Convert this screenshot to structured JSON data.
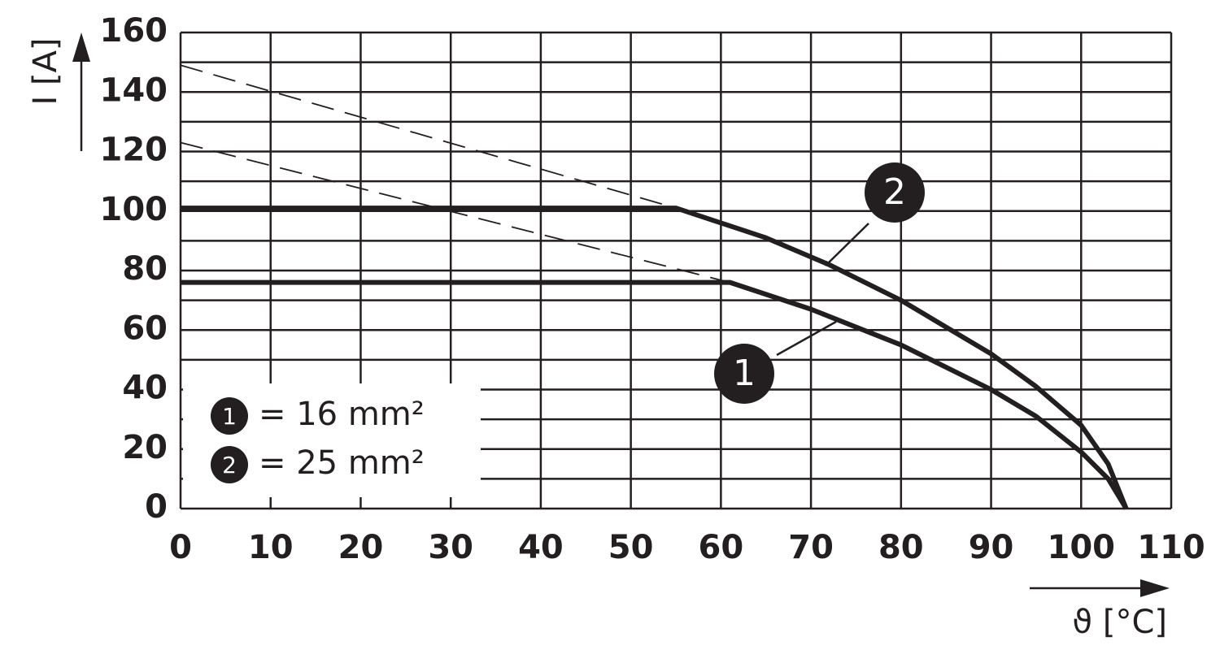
{
  "chart_data": {
    "type": "line",
    "x_label": "ϑ [°C]",
    "y_label": "I [A]",
    "xlim": [
      0,
      110
    ],
    "xticks": [
      0,
      10,
      20,
      30,
      40,
      50,
      60,
      70,
      80,
      90,
      100,
      110
    ],
    "ylim": [
      0,
      160
    ],
    "yticks": [
      0,
      20,
      40,
      60,
      80,
      100,
      120,
      140,
      160
    ],
    "y_minor_grid": [
      10,
      30,
      50,
      70,
      90,
      110,
      130,
      150
    ],
    "grid": true,
    "color": "#231f20",
    "series": [
      {
        "name": "1",
        "legend_label": "= 16 mm²",
        "x": [
          0,
          61,
          70,
          80,
          90,
          95,
          100,
          103,
          105
        ],
        "values": [
          76,
          76,
          67,
          55,
          40,
          31,
          19,
          10,
          0
        ],
        "extension": {
          "x": [
            0,
            61
          ],
          "values": [
            123,
            76
          ]
        }
      },
      {
        "name": "2",
        "legend_label": "= 25 mm²",
        "x": [
          0,
          55,
          65,
          72,
          80,
          90,
          95,
          100,
          103,
          105
        ],
        "values": [
          101,
          101,
          91,
          82,
          70,
          52,
          41,
          28,
          15,
          0
        ],
        "extension": {
          "x": [
            0,
            55
          ],
          "values": [
            149,
            101
          ]
        }
      }
    ]
  }
}
